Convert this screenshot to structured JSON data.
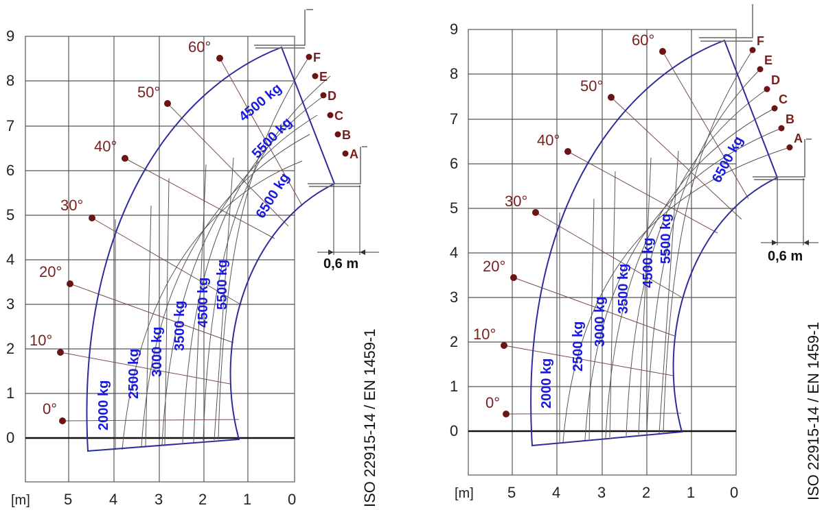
{
  "colors": {
    "grid": "#555555",
    "envelope": "#2c2c9a",
    "load_text": "#1a1adb",
    "angle_text": "#7a1e1e",
    "angle_dot": "#6b1414",
    "fan_lines": "#7a4a4a",
    "arc_lines": "#555555"
  },
  "charts": [
    {
      "x_ticks": [
        "5",
        "4",
        "3",
        "2",
        "1",
        "0"
      ],
      "y_ticks": [
        "0",
        "1",
        "2",
        "3",
        "4",
        "5",
        "6",
        "7",
        "8",
        "9"
      ],
      "unit_label": "[m]",
      "angles": [
        "0°",
        "10°",
        "20°",
        "30°",
        "40°",
        "50°",
        "60°"
      ],
      "zones": [
        "A",
        "B",
        "C",
        "D",
        "E",
        "F"
      ],
      "loads": [
        {
          "text": "2000 kg"
        },
        {
          "text": "2500 kg"
        },
        {
          "text": "3000 kg"
        },
        {
          "text": "3500 kg"
        },
        {
          "text": "4500 kg"
        },
        {
          "text": "5500 kg"
        },
        {
          "text": "6500 kg"
        },
        {
          "text": "5500 kg"
        },
        {
          "text": "4500 kg"
        }
      ],
      "dimension": "0,6 m",
      "standard": "ISO 22915-14 / EN 1459-1"
    },
    {
      "x_ticks": [
        "5",
        "4",
        "3",
        "2",
        "1",
        "0"
      ],
      "y_ticks": [
        "0",
        "1",
        "2",
        "3",
        "4",
        "5",
        "6",
        "7",
        "8",
        "9"
      ],
      "unit_label": "[m]",
      "angles": [
        "0°",
        "10°",
        "20°",
        "30°",
        "40°",
        "50°",
        "60°"
      ],
      "zones": [
        "A",
        "B",
        "C",
        "D",
        "E",
        "F"
      ],
      "loads": [
        {
          "text": "2000 kg"
        },
        {
          "text": "2500 kg"
        },
        {
          "text": "3000 kg"
        },
        {
          "text": "3500 kg"
        },
        {
          "text": "4500 kg"
        },
        {
          "text": "5500 kg"
        },
        {
          "text": "6500 kg"
        }
      ],
      "dimension": "0,6 m",
      "standard": "ISO 22915-14 / EN 1459-1"
    }
  ]
}
